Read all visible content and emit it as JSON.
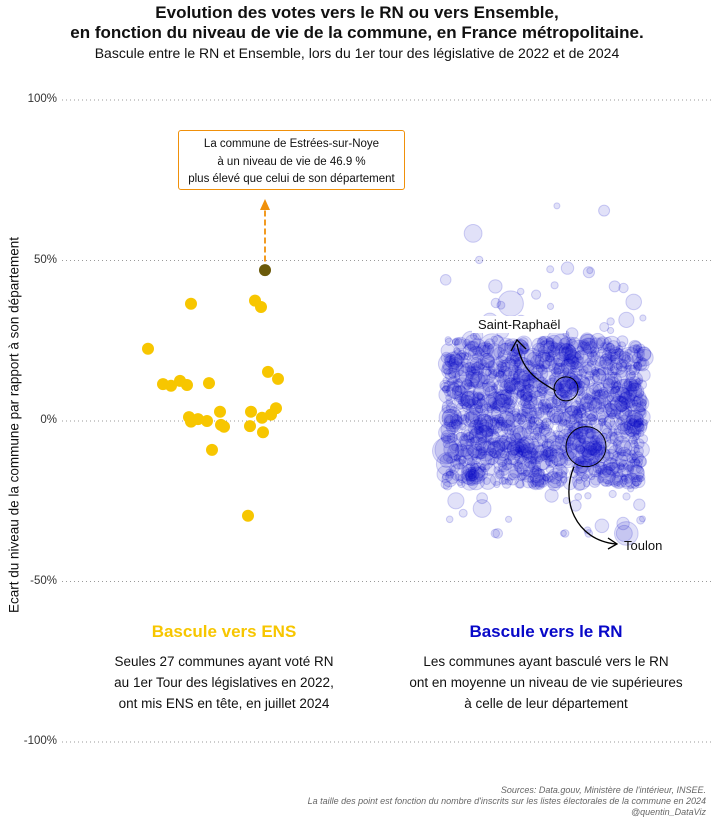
{
  "title_line1": "Evolution des votes vers le RN ou vers Ensemble,",
  "title_line2": "en fonction du niveau de vie de la commune, en France métropolitaine.",
  "subtitle": "Bascule entre le RN et Ensemble, lors du 1er tour des législative de 2022 et de 2024",
  "colors": {
    "ens": "#f7c600",
    "rn": "#0808c8",
    "highlight": "#6b5a0a",
    "annotation": "#f0900a"
  },
  "chart_data": {
    "type": "scatter",
    "ylabel": "Ecart du niveau de la commune par rapport à son département",
    "yticks": [
      "100%",
      "50%",
      "0%",
      "-50%",
      "-100%"
    ],
    "ylim": [
      -100,
      100
    ],
    "grid": "horizontal dotted",
    "groups": [
      {
        "name": "Bascule vers ENS",
        "color": "#f7c600",
        "points": [
          [
            -3.2,
            36.5
          ],
          [
            3.2,
            37.5
          ],
          [
            3.8,
            35.5
          ],
          [
            4.2,
            47
          ],
          [
            -7.5,
            22.5
          ],
          [
            4.5,
            15.3
          ],
          [
            5.5,
            13.1
          ],
          [
            -4.3,
            12.5
          ],
          [
            -3.6,
            11.2
          ],
          [
            -5.2,
            11.0
          ],
          [
            -6,
            11.5
          ],
          [
            -1.4,
            11.8
          ],
          [
            2.8,
            2.9
          ],
          [
            -0.3,
            2.9
          ],
          [
            5.3,
            4.0
          ],
          [
            3.9,
            1.0
          ],
          [
            -3.4,
            1.2
          ],
          [
            -2.5,
            0.6
          ],
          [
            -1.6,
            0
          ],
          [
            -3.2,
            -0.2
          ],
          [
            -0.2,
            -1.2
          ],
          [
            2.7,
            -1.6
          ],
          [
            4.8,
            2.0
          ],
          [
            0.1,
            -1.8
          ],
          [
            4.0,
            -3.5
          ],
          [
            -1.1,
            -9.0
          ],
          [
            2.5,
            -29.5
          ]
        ]
      },
      {
        "name": "Bascule vers le RN",
        "color": "#0808c8",
        "mean_estimate": 5,
        "spread": "most points between -20% and 25%, scattered up to about 68% and down to about -35%"
      }
    ],
    "highlighted_point": {
      "commune": "Estrées-sur-Noye",
      "value": 46.9
    },
    "labelled_points": [
      {
        "commune": "Saint-Raphaël",
        "value": 10
      },
      {
        "commune": "Toulon",
        "value": -8
      }
    ]
  },
  "annotation": {
    "line1": "La commune de Estrées-sur-Noye",
    "line2": "à un niveau de vie de 46.9 %",
    "line3": "plus élevé que celui de son département"
  },
  "labels": {
    "saint_raphael": "Saint-Raphaël",
    "toulon": "Toulon"
  },
  "group_ens": {
    "title": "Bascule vers ENS",
    "line1": "Seules 27 communes ayant voté RN",
    "line2": "au 1er Tour des législatives en 2022,",
    "line3": "ont mis ENS en tête, en juillet 2024"
  },
  "group_rn": {
    "title": "Bascule vers le RN",
    "line1": "Les communes ayant basculé vers le RN",
    "line2": "ont en moyenne un niveau de vie supérieures",
    "line3": "à celle de leur département"
  },
  "caption": {
    "line1": "Sources: Data.gouv, Ministère de l'intérieur, INSEE.",
    "line2": "La taille des point est fonction du nombre d'inscrits sur les listes électorales de la commune en 2024",
    "line3": "@quentin_DataViz"
  }
}
